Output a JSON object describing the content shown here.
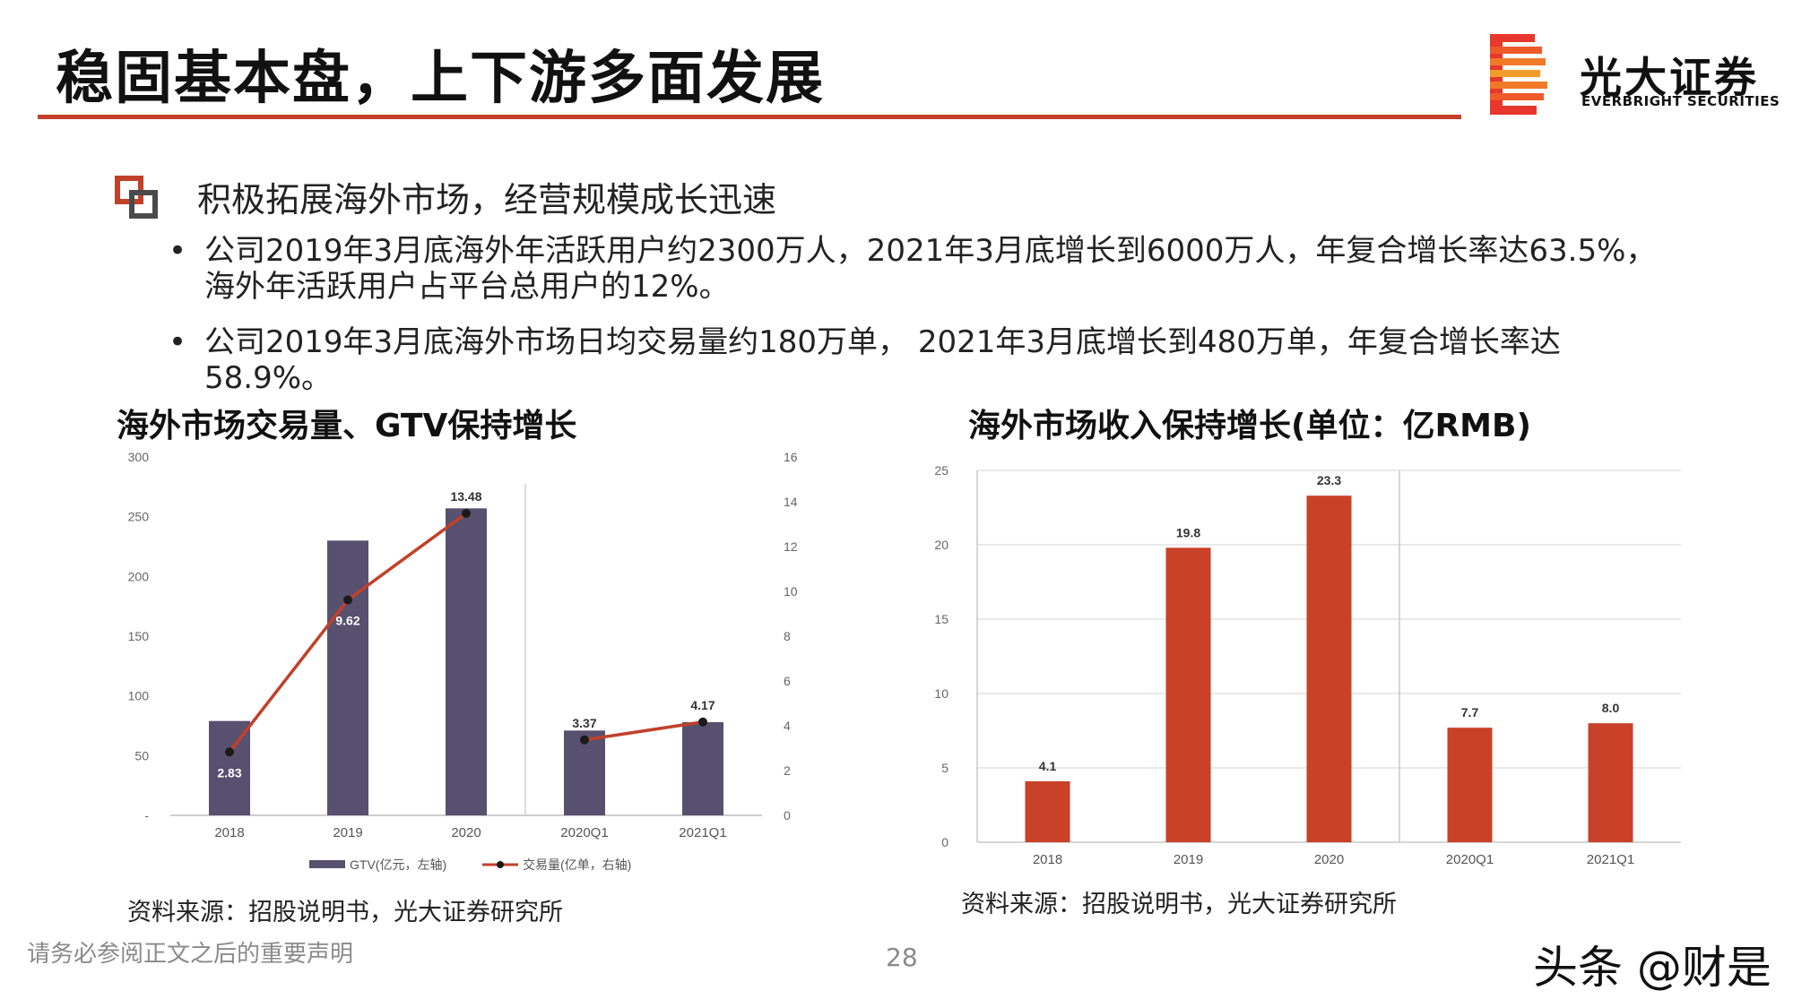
{
  "title": "稳固基本盘，上下游多面发展",
  "logo": {
    "cn": "光大证券",
    "en": "EVERBRIGHT SECURITIES"
  },
  "heading": "积极拓展海外市场，经营规模成长迅速",
  "bullets": [
    "公司2019年3月底海外年活跃用户约2300万人，2021年3月底增长到6000万人，年复合增长率达63.5%，海外年活跃用户占平台总用户的12%。",
    "公司2019年3月底海外市场日均交易量约180万单， 2021年3月底增长到480万单，年复合增长率达58.9%。"
  ],
  "bullet_marker": "•",
  "charts": {
    "left_title": "海外市场交易量、GTV保持增长",
    "right_title": "海外市场收入保持增长(单位：亿RMB)",
    "left_source": "资料来源：招股说明书，光大证券研究所",
    "right_source": "资料来源：招股说明书，光大证券研究所"
  },
  "footer": {
    "disclaimer": "请务必参阅正文之后的重要声明",
    "page": "28",
    "watermark": "头条 @财是"
  },
  "colors": {
    "accent": "#c2402a",
    "gtv_bar": "#57506f",
    "line": "#c2402a",
    "revenue_bar": "#c94128"
  },
  "chart_data": [
    {
      "type": "bar",
      "categories": [
        "2018",
        "2019",
        "2020",
        "2020Q1",
        "2021Q1"
      ],
      "series": [
        {
          "name": "GTV(亿元，左轴)",
          "type": "bar",
          "axis": "left",
          "values": [
            79,
            230,
            257,
            71,
            78
          ]
        },
        {
          "name": "交易量(亿单，右轴)",
          "type": "line",
          "axis": "right",
          "values": [
            2.83,
            9.62,
            13.48,
            3.37,
            4.17
          ],
          "labels": [
            "2.83",
            "9.62",
            "13.48",
            "3.37",
            "4.17"
          ]
        }
      ],
      "left_ticks": [
        "-",
        "50",
        "100",
        "150",
        "200",
        "250",
        "300"
      ],
      "right_ticks": [
        "0",
        "2",
        "4",
        "6",
        "8",
        "10",
        "12",
        "14",
        "16"
      ],
      "ylim_left": [
        0,
        300
      ],
      "ylim_right": [
        0,
        16
      ],
      "line_breaks_after": "2020",
      "legend_position": "bottom"
    },
    {
      "type": "bar",
      "categories": [
        "2018",
        "2019",
        "2020",
        "2020Q1",
        "2021Q1"
      ],
      "values": [
        4.1,
        19.8,
        23.3,
        7.7,
        8.0
      ],
      "labels": [
        "4.1",
        "19.8",
        "23.3",
        "7.7",
        "8.0"
      ],
      "y_ticks": [
        "0",
        "5",
        "10",
        "15",
        "20",
        "25"
      ],
      "ylim": [
        0,
        25
      ],
      "grid": true
    }
  ]
}
